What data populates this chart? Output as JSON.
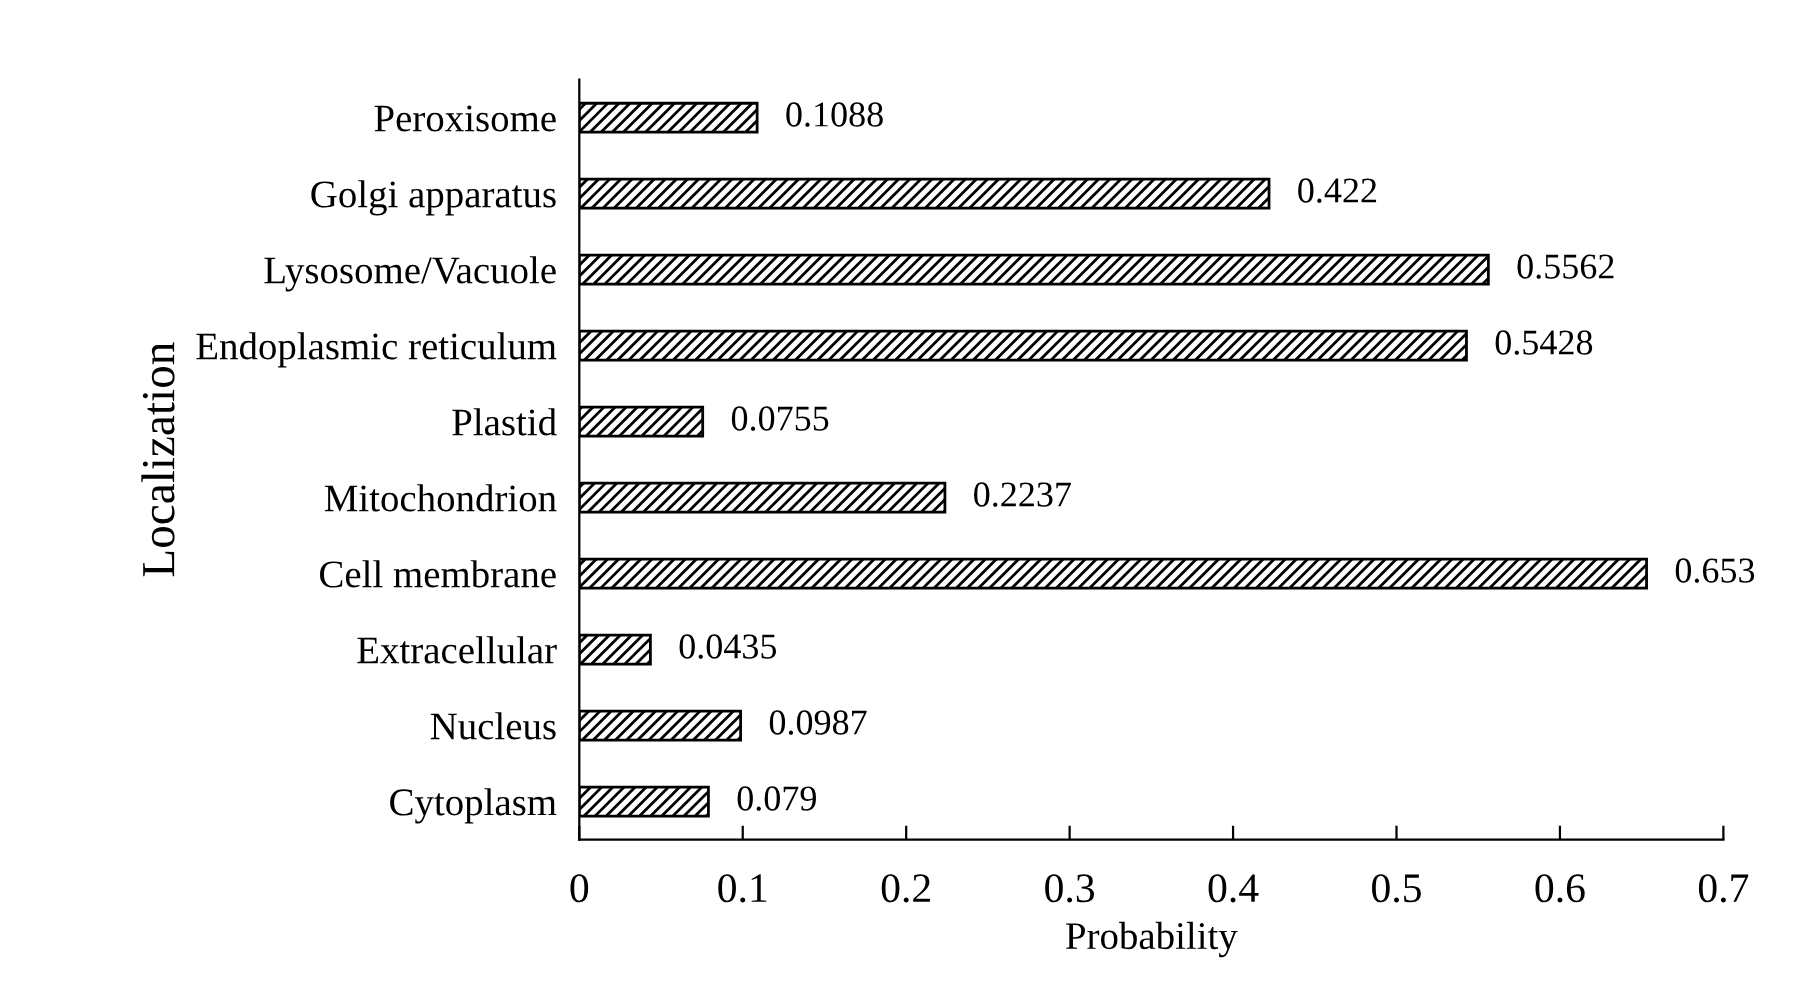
{
  "chart_data": {
    "type": "bar",
    "orientation": "horizontal",
    "xlabel": "Probability",
    "ylabel": "Localization",
    "categories": [
      "Peroxisome",
      "Golgi apparatus",
      "Lysosome/Vacuole",
      "Endoplasmic reticulum",
      "Plastid",
      "Mitochondrion",
      "Cell membrane",
      "Extracellular",
      "Nucleus",
      "Cytoplasm"
    ],
    "values": [
      0.1088,
      0.422,
      0.5562,
      0.5428,
      0.0755,
      0.2237,
      0.653,
      0.0435,
      0.0987,
      0.079
    ],
    "color": "#000000",
    "xlim": [
      0,
      0.7
    ],
    "xticks": [
      0,
      0.1,
      0.2,
      0.3,
      0.4,
      0.5,
      0.6,
      0.7
    ],
    "data_labels": true,
    "grid": false,
    "legend": false
  }
}
